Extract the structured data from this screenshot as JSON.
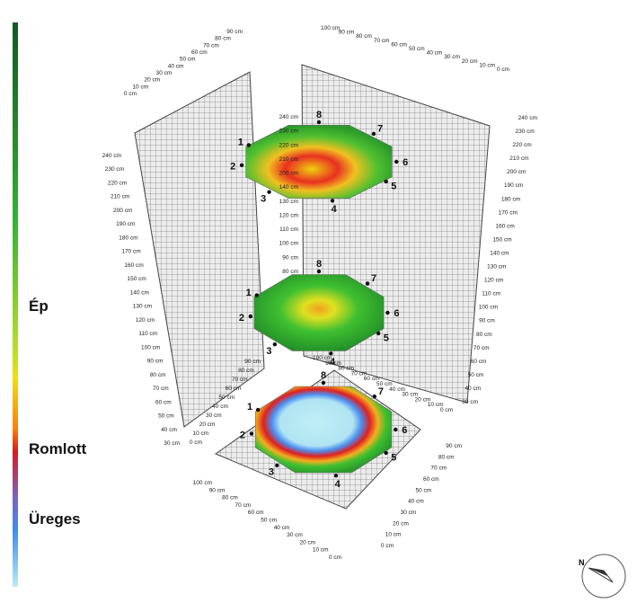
{
  "legend": {
    "labels": [
      "Ép",
      "Romlott",
      "Üreges"
    ]
  },
  "left_wall_ticks": [
    "30 cm",
    "40 cm",
    "50 cm",
    "60 cm",
    "70 cm",
    "80 cm",
    "90 cm",
    "100 cm",
    "110 cm",
    "120 cm",
    "130 cm",
    "140 cm",
    "150 cm",
    "160 cm",
    "170 cm",
    "180 cm",
    "190 cm",
    "200 cm",
    "210 cm",
    "220 cm",
    "230 cm",
    "240 cm"
  ],
  "right_wall_ticks": [
    "30 cm",
    "40 cm",
    "50 cm",
    "60 cm",
    "70 cm",
    "80 cm",
    "90 cm",
    "100 cm",
    "110 cm",
    "120 cm",
    "130 cm",
    "140 cm",
    "150 cm",
    "160 cm",
    "170 cm",
    "180 cm",
    "190 cm",
    "200 cm",
    "210 cm",
    "220 cm",
    "230 cm",
    "240 cm"
  ],
  "center_wall_ticks": [
    "80 cm",
    "90 cm",
    "100 cm",
    "110 cm",
    "120 cm",
    "130 cm",
    "140 cm",
    "200 cm",
    "210 cm",
    "220 cm",
    "230 cm",
    "240 cm"
  ],
  "top_left_ticks": [
    "0 cm",
    "10 cm",
    "20 cm",
    "30 cm",
    "40 cm",
    "50 cm",
    "60 cm",
    "70 cm",
    "80 cm",
    "90 cm"
  ],
  "top_right_ticks": [
    "100 cm",
    "90 cm",
    "80 cm",
    "70 cm",
    "60 cm",
    "50 cm",
    "40 cm",
    "30 cm",
    "20 cm",
    "10 cm",
    "0 cm"
  ],
  "inner_left_ticks": [
    "0 cm",
    "10 cm",
    "20 cm",
    "30 cm",
    "40 cm",
    "50 cm",
    "60 cm",
    "70 cm",
    "80 cm",
    "90 cm"
  ],
  "inner_right_ticks": [
    "100 cm",
    "90 cm",
    "80 cm",
    "70 cm",
    "60 cm",
    "50 cm",
    "40 cm",
    "30 cm",
    "20 cm",
    "10 cm",
    "0 cm"
  ],
  "floor_left_ticks": [
    "100 cm",
    "90 cm",
    "80 cm",
    "70 cm",
    "60 cm",
    "50 cm",
    "40 cm",
    "30 cm",
    "20 cm",
    "10 cm",
    "0 cm"
  ],
  "floor_right_ticks": [
    "90 cm",
    "80 cm",
    "70 cm",
    "60 cm",
    "50 cm",
    "40 cm",
    "30 cm",
    "20 cm",
    "10 cm",
    "0 cm"
  ],
  "sensors": [
    "1",
    "2",
    "3",
    "4",
    "5",
    "6",
    "7",
    "8"
  ],
  "compass": "N"
}
